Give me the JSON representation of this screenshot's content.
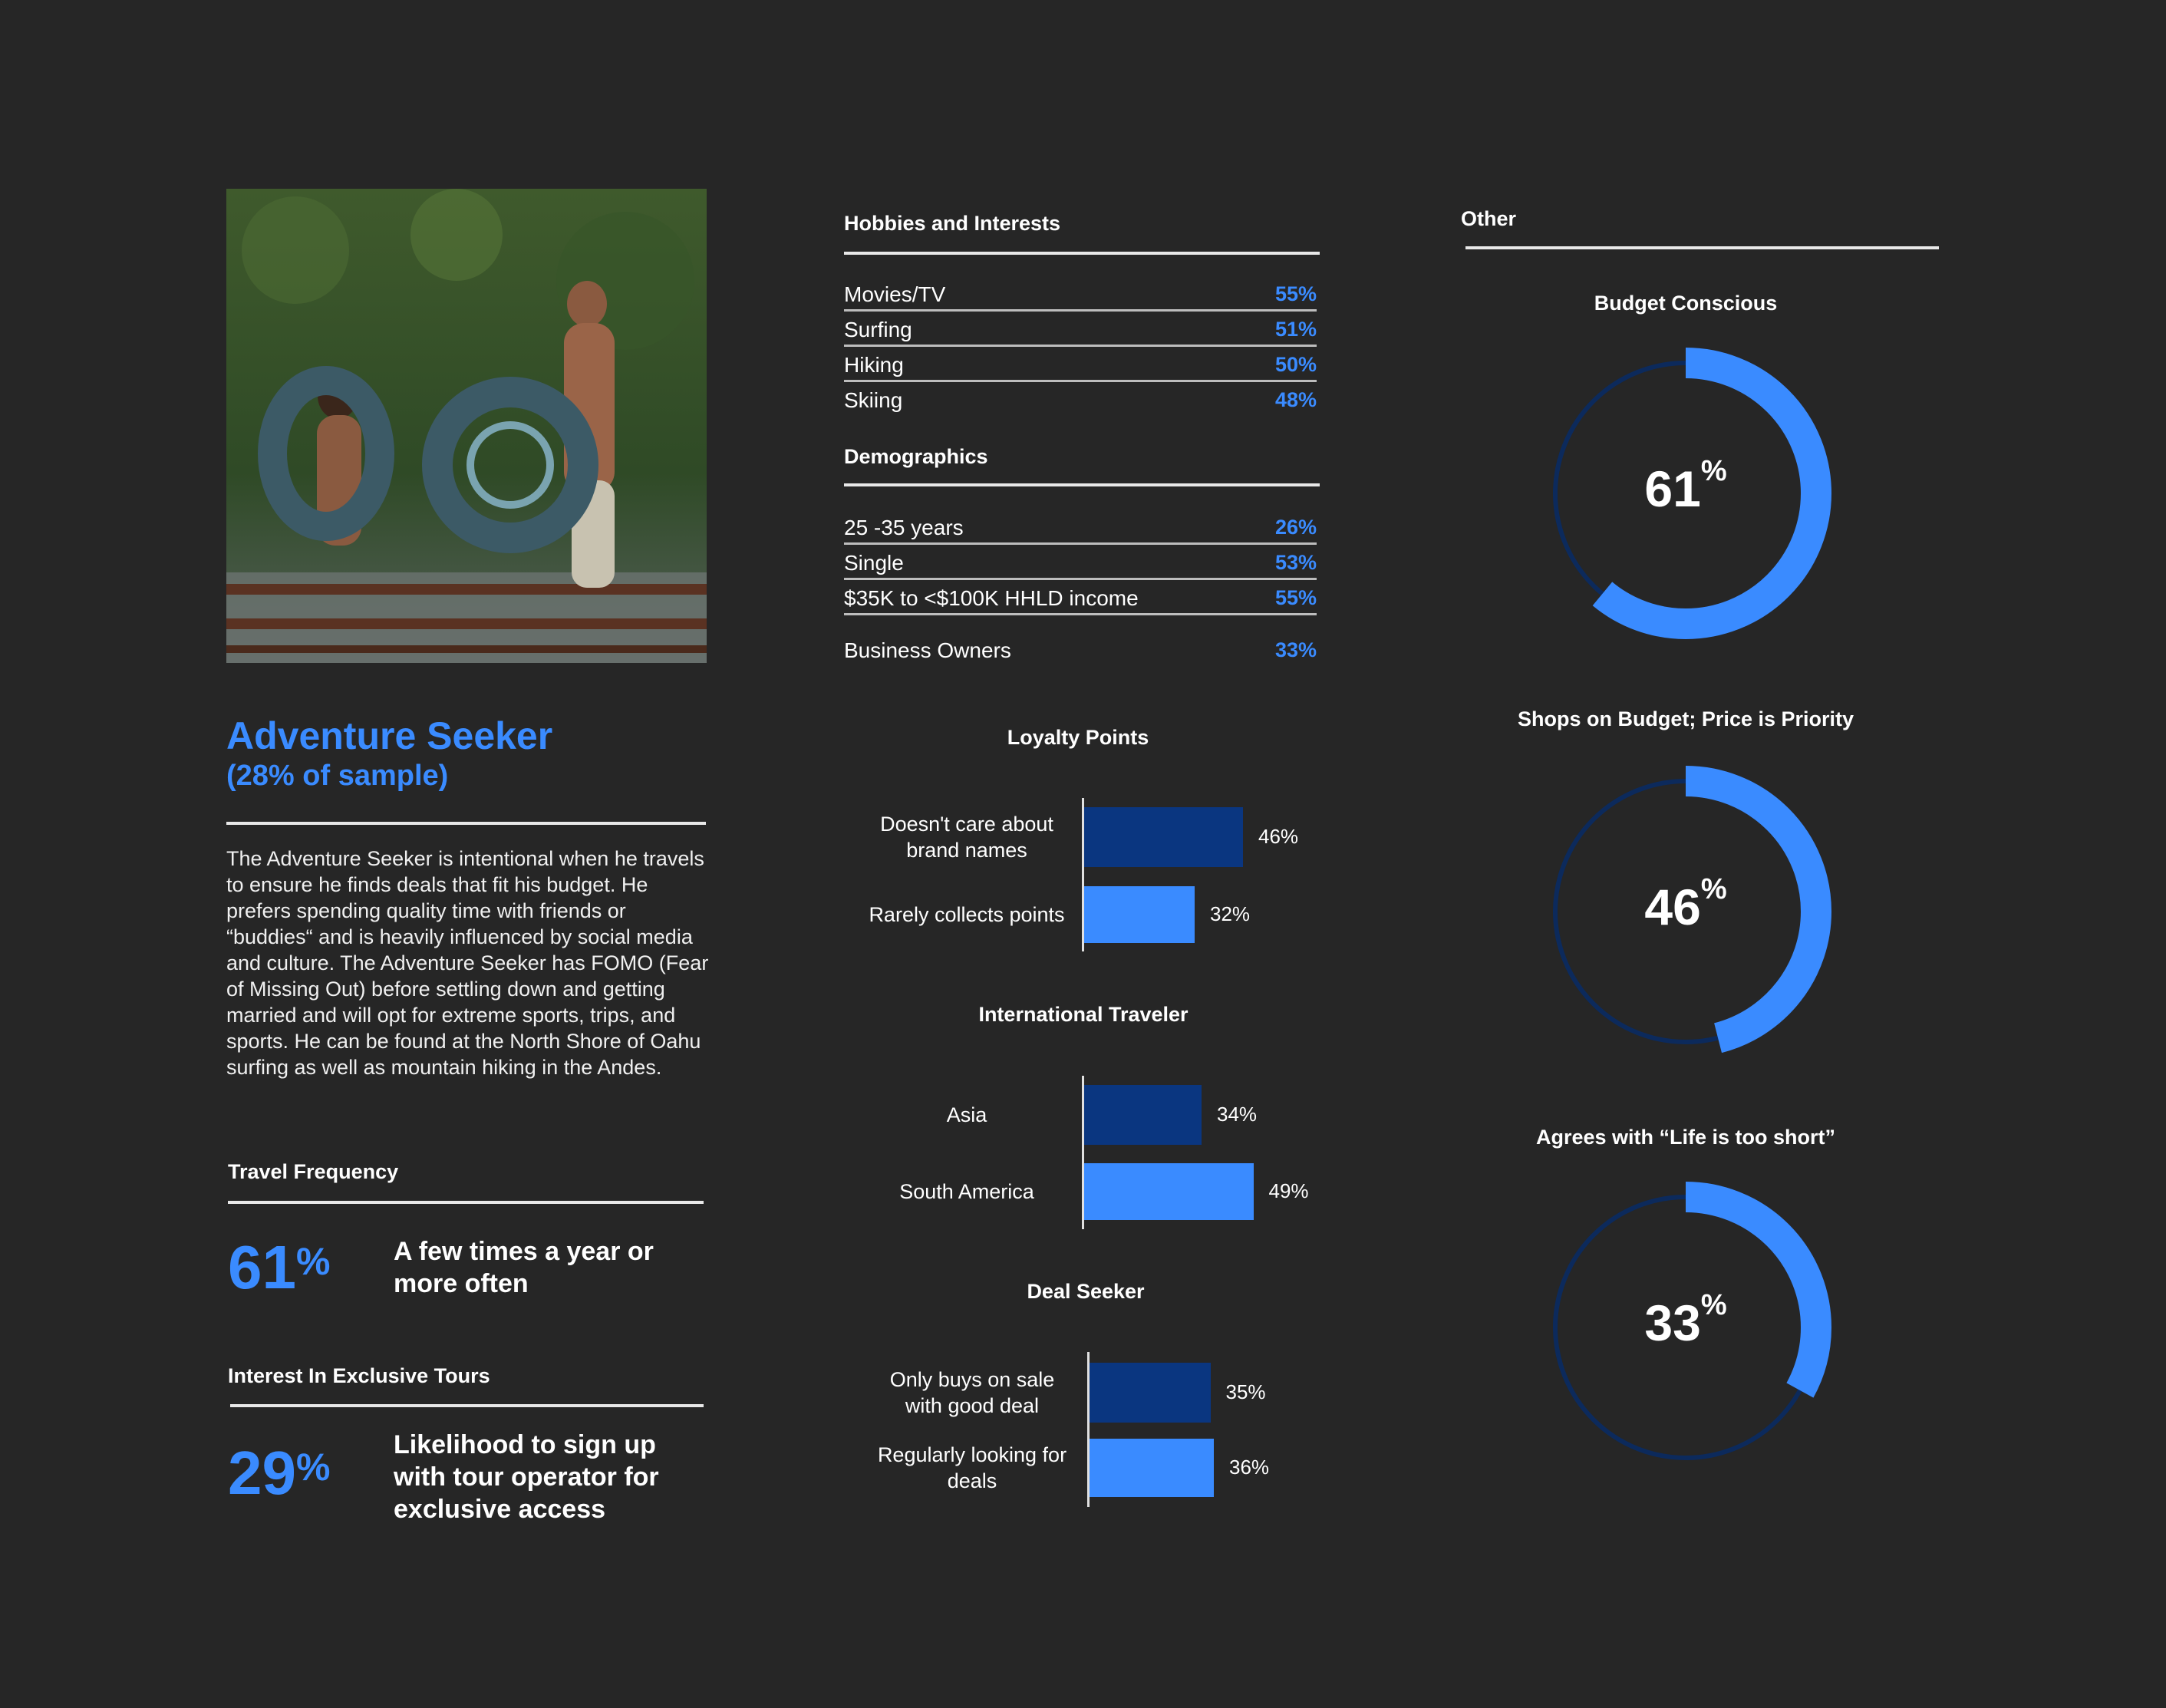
{
  "persona": {
    "name": "Adventure Seeker",
    "sample": "(28% of sample)",
    "description": "The Adventure Seeker is intentional when he travels to ensure he finds deals that fit his budget. He prefers spending quality time with friends or “buddies“ and is heavily influenced by social media and culture. The Adventure Seeker has FOMO (Fear of Missing Out) before settling down and getting married and will opt for extreme sports, trips, and sports. He can be found at the North Shore of Oahu surfing as well as mountain hiking in the Andes."
  },
  "travel_frequency": {
    "title": "Travel Frequency",
    "value": "61",
    "unit": "%",
    "text": "A few times a year or more often"
  },
  "exclusive_tours": {
    "title": "Interest In Exclusive Tours",
    "value": "29",
    "unit": "%",
    "text": "Likelihood to sign up with tour operator for exclusive access"
  },
  "hobbies": {
    "title": "Hobbies and Interests",
    "items": [
      {
        "label": "Movies/TV",
        "value": "55%"
      },
      {
        "label": "Surfing",
        "value": "51%"
      },
      {
        "label": "Hiking",
        "value": "50%"
      },
      {
        "label": "Skiing",
        "value": "48%"
      }
    ]
  },
  "demographics": {
    "title": "Demographics",
    "items": [
      {
        "label": "25 -35 years",
        "value": "26%"
      },
      {
        "label": "Single",
        "value": "53%"
      },
      {
        "label": "$35K to <$100K HHLD income",
        "value": "55%"
      },
      {
        "label": "Business Owners",
        "value": "33%"
      }
    ]
  },
  "colors": {
    "accent": "#3a8bff",
    "bar_dark": "#0a3680",
    "bar_light": "#3a8bff",
    "ring_track": "#0c2a5c",
    "background": "#262626"
  },
  "chart_data": [
    {
      "type": "bar",
      "title": "Loyalty Points",
      "categories": [
        "Doesn't care about brand names",
        "Rarely collects points"
      ],
      "values": [
        46,
        32
      ],
      "value_labels": [
        "46%",
        "32%"
      ]
    },
    {
      "type": "bar",
      "title": "International Traveler",
      "categories": [
        "Asia",
        "South America"
      ],
      "values": [
        34,
        49
      ],
      "value_labels": [
        "34%",
        "49%"
      ]
    },
    {
      "type": "bar",
      "title": "Deal Seeker",
      "categories": [
        "Only buys on sale with good deal",
        "Regularly looking for deals"
      ],
      "values": [
        35,
        36
      ],
      "value_labels": [
        "35%",
        "36%"
      ]
    },
    {
      "type": "pie",
      "title": "Budget Conscious",
      "value": 61,
      "value_text": "61",
      "unit": "%"
    },
    {
      "type": "pie",
      "title": "Shops on Budget; Price is Priority",
      "value": 46,
      "value_text": "46",
      "unit": "%"
    },
    {
      "type": "pie",
      "title": "Agrees with “Life is too short”",
      "value": 33,
      "value_text": "33",
      "unit": "%"
    }
  ],
  "other": {
    "title": "Other"
  }
}
